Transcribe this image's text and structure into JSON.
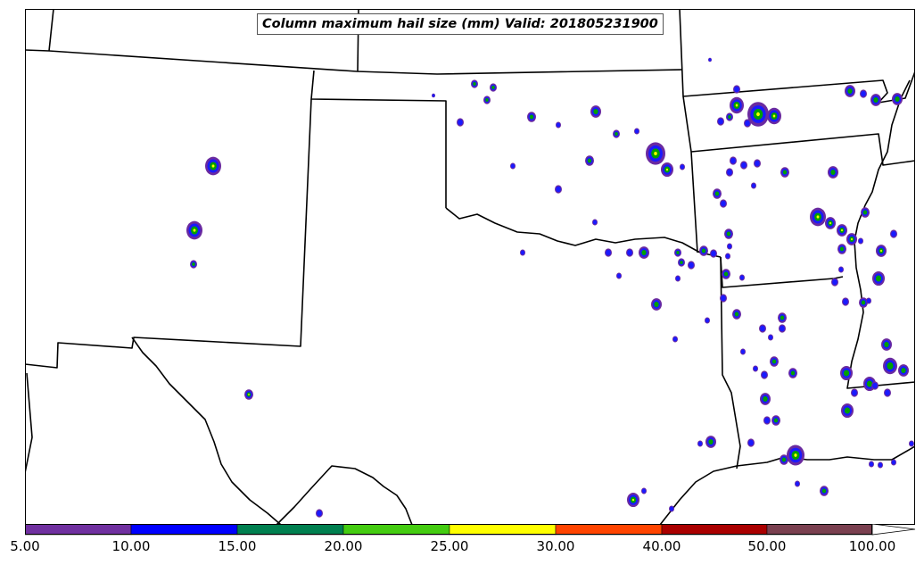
{
  "title": "Column maximum hail size (mm) Valid: 201805231900",
  "colorbar": {
    "labels": [
      "5.00",
      "10.00",
      "15.00",
      "20.00",
      "25.00",
      "30.00",
      "40.00",
      "50.00",
      "100.00"
    ],
    "colors": [
      "#7030a0",
      "#0000ff",
      "#008050",
      "#44cc11",
      "#ffff00",
      "#ff4400",
      "#aa0000",
      "#7a4050"
    ]
  },
  "palette": {
    "outer": "#6a2aa0",
    "blue": "#1a1aff",
    "green": "#00a000",
    "yellow": "#ffff00",
    "red": "#ff2200",
    "border": "#000000"
  }
}
